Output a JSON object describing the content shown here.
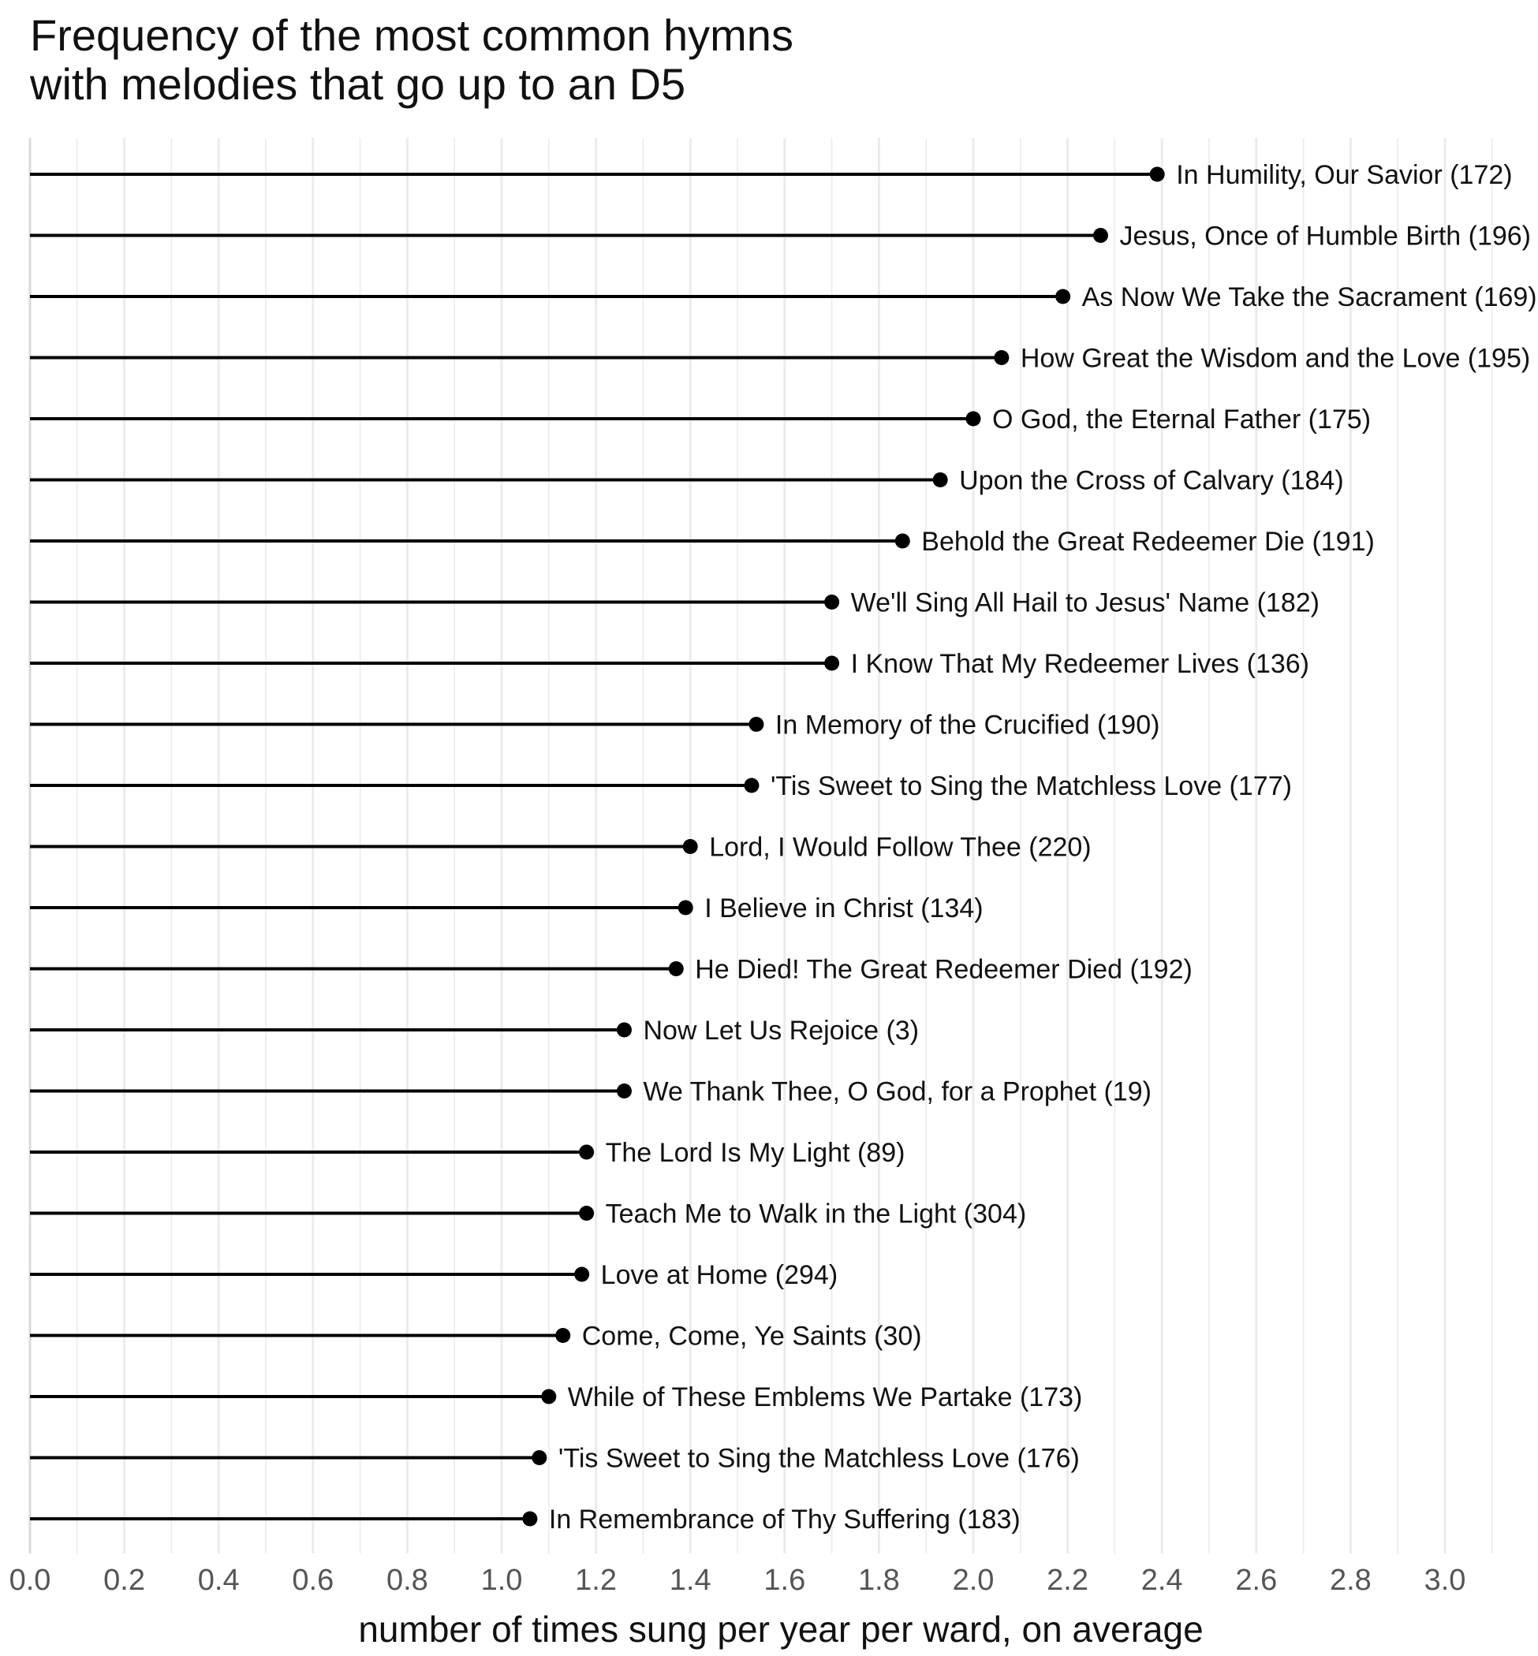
{
  "chart_data": {
    "type": "lollipop",
    "orientation": "horizontal",
    "title_lines": [
      "Frequency of the most common hymns",
      "with melodies that go up to an D5"
    ],
    "xlabel": "number of times sung per year per ward, on average",
    "ylabel": "",
    "xlim": [
      0.0,
      3.1
    ],
    "x_ticks": [
      "0.0",
      "0.2",
      "0.4",
      "0.6",
      "0.8",
      "1.0",
      "1.2",
      "1.4",
      "1.6",
      "1.8",
      "2.0",
      "2.2",
      "2.4",
      "2.6",
      "2.8",
      "3.0"
    ],
    "grid": {
      "major": true,
      "minor": true
    },
    "legend": "none",
    "colors": {
      "stem": "#000000",
      "dot": "#000000",
      "grid": "#ebebeb",
      "tick_text": "#555555"
    },
    "items": [
      {
        "label": "In Humility, Our Savior (172)",
        "value": 2.39
      },
      {
        "label": "Jesus, Once of Humble Birth (196)",
        "value": 2.27
      },
      {
        "label": "As Now We Take the Sacrament (169)",
        "value": 2.19
      },
      {
        "label": "How Great the Wisdom and the Love (195)",
        "value": 2.06
      },
      {
        "label": "O God, the Eternal Father (175)",
        "value": 2.0
      },
      {
        "label": "Upon the Cross of Calvary (184)",
        "value": 1.93
      },
      {
        "label": "Behold the Great Redeemer Die (191)",
        "value": 1.85
      },
      {
        "label": "We'll Sing All Hail to Jesus' Name (182)",
        "value": 1.7
      },
      {
        "label": "I Know That My Redeemer Lives (136)",
        "value": 1.7
      },
      {
        "label": "In Memory of the Crucified (190)",
        "value": 1.54
      },
      {
        "label": "'Tis Sweet to Sing the Matchless Love (177)",
        "value": 1.53
      },
      {
        "label": "Lord, I Would Follow Thee (220)",
        "value": 1.4
      },
      {
        "label": "I Believe in Christ (134)",
        "value": 1.39
      },
      {
        "label": "He Died! The Great Redeemer Died (192)",
        "value": 1.37
      },
      {
        "label": "Now Let Us Rejoice (3)",
        "value": 1.26
      },
      {
        "label": "We Thank Thee, O God, for a Prophet (19)",
        "value": 1.26
      },
      {
        "label": "The Lord Is My Light (89)",
        "value": 1.18
      },
      {
        "label": "Teach Me to Walk in the Light (304)",
        "value": 1.18
      },
      {
        "label": "Love at Home (294)",
        "value": 1.17
      },
      {
        "label": "Come, Come, Ye Saints (30)",
        "value": 1.13
      },
      {
        "label": "While of These Emblems We Partake (173)",
        "value": 1.1
      },
      {
        "label": "'Tis Sweet to Sing the Matchless Love (176)",
        "value": 1.08
      },
      {
        "label": "In Remembrance of Thy Suffering (183)",
        "value": 1.06
      }
    ]
  }
}
